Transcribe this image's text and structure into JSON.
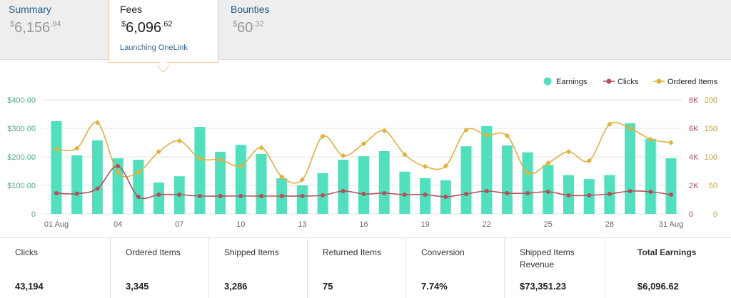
{
  "tabs": [
    {
      "title": "Summary",
      "amount_main": "6,156",
      "amount_cents": ".94"
    },
    {
      "title": "Fees",
      "amount_main": "6,096",
      "amount_cents": ".62",
      "link": "Launching OneLink"
    },
    {
      "title": "Bounties",
      "amount_main": "60",
      "amount_cents": ".32"
    }
  ],
  "currency_symbol": "$",
  "colors": {
    "earnings": "#50e0bd",
    "clicks": "#b5505a",
    "ordered_items": "#e3b03e",
    "earnings_axis": "#3fb58f",
    "clicks_axis": "#b5505a",
    "ordered_axis": "#c9a227"
  },
  "chart_data": {
    "type": "bar",
    "x_tick_labels": [
      "01 Aug",
      "04",
      "07",
      "10",
      "13",
      "16",
      "19",
      "22",
      "25",
      "28",
      "31 Aug"
    ],
    "x_tick_days": [
      1,
      4,
      7,
      10,
      13,
      16,
      19,
      22,
      25,
      28,
      31
    ],
    "days": [
      1,
      2,
      3,
      4,
      5,
      6,
      7,
      8,
      9,
      10,
      11,
      12,
      13,
      14,
      15,
      16,
      17,
      18,
      19,
      20,
      21,
      22,
      23,
      24,
      25,
      26,
      27,
      28,
      29,
      30,
      31
    ],
    "series": [
      {
        "name": "Earnings",
        "type": "bar",
        "axis": "left",
        "values": [
          325,
          205,
          258,
          195,
          190,
          110,
          132,
          305,
          218,
          242,
          210,
          125,
          100,
          143,
          190,
          202,
          220,
          148,
          125,
          118,
          237,
          308,
          240,
          216,
          172,
          136,
          122,
          136,
          318,
          263,
          195
        ]
      },
      {
        "name": "Clicks",
        "type": "line",
        "axis": "right_inner",
        "values": [
          1450,
          1420,
          1770,
          3350,
          1200,
          1350,
          1350,
          1250,
          1250,
          1250,
          1250,
          1250,
          1250,
          1300,
          1600,
          1400,
          1450,
          1350,
          1350,
          1200,
          1400,
          1600,
          1450,
          1450,
          1550,
          1300,
          1300,
          1400,
          1600,
          1550,
          1350
        ]
      },
      {
        "name": "Ordered Items",
        "type": "line",
        "axis": "right_outer",
        "values": [
          113,
          115,
          160,
          73,
          73,
          109,
          128,
          97,
          95,
          84,
          116,
          65,
          60,
          136,
          102,
          123,
          146,
          104,
          83,
          84,
          147,
          138,
          137,
          72,
          89,
          109,
          93,
          157,
          150,
          131,
          125
        ]
      }
    ],
    "y_left": {
      "ticks": [
        "0",
        "$100.00",
        "$200.00",
        "$300.00",
        "$400.00"
      ],
      "range": [
        0,
        400
      ]
    },
    "y_right_inner": {
      "ticks": [
        "0",
        "2K",
        "4K",
        "6K",
        "8K"
      ],
      "range": [
        0,
        8000
      ]
    },
    "y_right_outer": {
      "ticks": [
        "0",
        "50",
        "100",
        "150",
        "200"
      ],
      "range": [
        0,
        200
      ]
    },
    "legend_position": "top-right",
    "grid": true
  },
  "stats": [
    {
      "label": "Clicks",
      "value": "43,194"
    },
    {
      "label": "Ordered Items",
      "value": "3,345"
    },
    {
      "label": "Shipped Items",
      "value": "3,286"
    },
    {
      "label": "Returned Items",
      "value": "75"
    },
    {
      "label": "Conversion",
      "value": "7.74%"
    },
    {
      "label": "Shipped Items Revenue",
      "value": "$73,351.23"
    },
    {
      "label": "Total Earnings",
      "value": "$6,096.62"
    }
  ]
}
